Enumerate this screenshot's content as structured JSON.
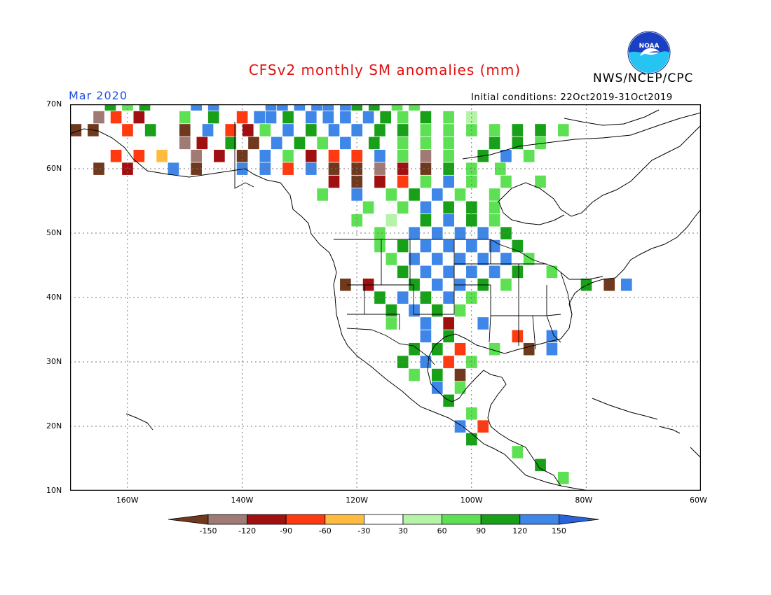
{
  "header": {
    "title": "CFSv2 monthly SM anomalies (mm)",
    "org": "NWS/NCEP/CPC",
    "period": "Mar 2020",
    "initial_conditions": "Initial conditions: 22Oct2019-31Oct2019",
    "logo_text": "NOAA"
  },
  "axes": {
    "lat_labels": [
      "70N",
      "60N",
      "50N",
      "40N",
      "30N",
      "20N",
      "10N"
    ],
    "lon_labels": [
      "160W",
      "140W",
      "120W",
      "100W",
      "80W",
      "60W"
    ],
    "lat_range": [
      10,
      70
    ],
    "lon_range": [
      -170,
      -60
    ]
  },
  "legend": {
    "ticks": [
      "-150",
      "-120",
      "-90",
      "-60",
      "-30",
      "30",
      "60",
      "90",
      "120",
      "150"
    ],
    "colors": [
      "#70391e",
      "#a07a74",
      "#a01010",
      "#ff3a10",
      "#ffbb40",
      "#ffffff",
      "#b4f3a8",
      "#5ee054",
      "#18a018",
      "#3e86e8",
      "#2a62d8"
    ]
  },
  "map_data": {
    "cell_deg": 1.875,
    "anomaly_cells": [
      [
        "70,-148",
        150
      ],
      [
        "70,-145",
        150
      ],
      [
        "70,-135",
        150
      ],
      [
        "70,-133",
        150
      ],
      [
        "70,-130",
        120
      ],
      [
        "70,-127",
        150
      ],
      [
        "70,-125",
        150
      ],
      [
        "70,-122",
        150
      ],
      [
        "70,-120",
        90
      ],
      [
        "70,-117",
        90
      ],
      [
        "70,-113",
        60
      ],
      [
        "70,-110",
        60
      ],
      [
        "70,-163",
        90
      ],
      [
        "70,-160",
        60
      ],
      [
        "70,-157",
        90
      ],
      [
        "68,-165",
        -120
      ],
      [
        "68,-162",
        -60
      ],
      [
        "68,-158",
        -90
      ],
      [
        "68,-150",
        60
      ],
      [
        "68,-145",
        90
      ],
      [
        "68,-140",
        -60
      ],
      [
        "68,-137",
        120
      ],
      [
        "68,-135",
        150
      ],
      [
        "68,-132",
        90
      ],
      [
        "68,-128",
        150
      ],
      [
        "68,-125",
        150
      ],
      [
        "68,-122",
        150
      ],
      [
        "68,-118",
        120
      ],
      [
        "68,-115",
        90
      ],
      [
        "68,-112",
        60
      ],
      [
        "68,-108",
        90
      ],
      [
        "68,-104",
        60
      ],
      [
        "68,-100",
        30
      ],
      [
        "66,-169",
        -150
      ],
      [
        "66,-166",
        -150
      ],
      [
        "66,-160",
        -60
      ],
      [
        "66,-156",
        90
      ],
      [
        "66,-150",
        -150
      ],
      [
        "66,-146",
        120
      ],
      [
        "66,-142",
        -60
      ],
      [
        "66,-139",
        -90
      ],
      [
        "66,-136",
        60
      ],
      [
        "66,-132",
        120
      ],
      [
        "66,-128",
        90
      ],
      [
        "66,-124",
        150
      ],
      [
        "66,-120",
        120
      ],
      [
        "66,-116",
        90
      ],
      [
        "66,-112",
        90
      ],
      [
        "66,-108",
        60
      ],
      [
        "66,-104",
        60
      ],
      [
        "66,-100",
        60
      ],
      [
        "66,-96",
        60
      ],
      [
        "66,-92",
        90
      ],
      [
        "66,-88",
        90
      ],
      [
        "66,-84",
        60
      ],
      [
        "64,-150",
        -120
      ],
      [
        "64,-147",
        -90
      ],
      [
        "64,-142",
        90
      ],
      [
        "64,-138",
        -150
      ],
      [
        "64,-134",
        120
      ],
      [
        "64,-130",
        90
      ],
      [
        "64,-126",
        60
      ],
      [
        "64,-122",
        120
      ],
      [
        "64,-117",
        90
      ],
      [
        "64,-112",
        60
      ],
      [
        "64,-108",
        60
      ],
      [
        "64,-104",
        60
      ],
      [
        "64,-96",
        90
      ],
      [
        "64,-92",
        90
      ],
      [
        "64,-88",
        60
      ],
      [
        "62,-162",
        -60
      ],
      [
        "62,-158",
        -60
      ],
      [
        "62,-154",
        -30
      ],
      [
        "62,-148",
        -120
      ],
      [
        "62,-144",
        -90
      ],
      [
        "62,-140",
        -150
      ],
      [
        "62,-136",
        120
      ],
      [
        "62,-132",
        60
      ],
      [
        "62,-128",
        -90
      ],
      [
        "62,-124",
        -60
      ],
      [
        "62,-120",
        -60
      ],
      [
        "62,-116",
        120
      ],
      [
        "62,-112",
        60
      ],
      [
        "62,-108",
        -120
      ],
      [
        "62,-104",
        60
      ],
      [
        "62,-98",
        90
      ],
      [
        "62,-94",
        120
      ],
      [
        "62,-90",
        60
      ],
      [
        "60,-165",
        -150
      ],
      [
        "60,-160",
        -90
      ],
      [
        "60,-152",
        150
      ],
      [
        "60,-148",
        -150
      ],
      [
        "60,-140",
        150
      ],
      [
        "60,-136",
        120
      ],
      [
        "60,-132",
        -60
      ],
      [
        "60,-128",
        150
      ],
      [
        "60,-124",
        -150
      ],
      [
        "60,-120",
        -150
      ],
      [
        "60,-116",
        -120
      ],
      [
        "60,-112",
        -90
      ],
      [
        "60,-108",
        -150
      ],
      [
        "60,-104",
        90
      ],
      [
        "60,-100",
        60
      ],
      [
        "60,-95",
        60
      ],
      [
        "58,-124",
        -90
      ],
      [
        "58,-120",
        -150
      ],
      [
        "58,-116",
        -90
      ],
      [
        "58,-112",
        -60
      ],
      [
        "58,-108",
        60
      ],
      [
        "58,-104",
        150
      ],
      [
        "58,-100",
        60
      ],
      [
        "58,-94",
        60
      ],
      [
        "58,-88",
        60
      ],
      [
        "56,-126",
        60
      ],
      [
        "56,-120",
        150
      ],
      [
        "56,-114",
        60
      ],
      [
        "56,-110",
        90
      ],
      [
        "56,-106",
        120
      ],
      [
        "56,-102",
        60
      ],
      [
        "56,-96",
        60
      ],
      [
        "54,-118",
        60
      ],
      [
        "54,-112",
        60
      ],
      [
        "54,-108",
        120
      ],
      [
        "54,-104",
        90
      ],
      [
        "54,-100",
        90
      ],
      [
        "54,-96",
        60
      ],
      [
        "52,-120",
        60
      ],
      [
        "52,-114",
        30
      ],
      [
        "52,-108",
        90
      ],
      [
        "52,-104",
        120
      ],
      [
        "52,-100",
        90
      ],
      [
        "52,-96",
        60
      ],
      [
        "50,-116",
        60
      ],
      [
        "50,-110",
        120
      ],
      [
        "50,-106",
        150
      ],
      [
        "50,-102",
        150
      ],
      [
        "50,-98",
        120
      ],
      [
        "50,-94",
        90
      ],
      [
        "48,-116",
        60
      ],
      [
        "48,-112",
        90
      ],
      [
        "48,-108",
        150
      ],
      [
        "48,-104",
        150
      ],
      [
        "48,-100",
        150
      ],
      [
        "48,-96",
        150
      ],
      [
        "48,-92",
        90
      ],
      [
        "46,-114",
        60
      ],
      [
        "46,-110",
        150
      ],
      [
        "46,-106",
        150
      ],
      [
        "46,-102",
        150
      ],
      [
        "46,-98",
        150
      ],
      [
        "46,-94",
        120
      ],
      [
        "46,-90",
        60
      ],
      [
        "44,-112",
        90
      ],
      [
        "44,-108",
        150
      ],
      [
        "44,-104",
        150
      ],
      [
        "44,-100",
        150
      ],
      [
        "44,-96",
        120
      ],
      [
        "44,-92",
        90
      ],
      [
        "44,-86",
        60
      ],
      [
        "42,-122",
        -150
      ],
      [
        "42,-118",
        -90
      ],
      [
        "42,-110",
        90
      ],
      [
        "42,-106",
        120
      ],
      [
        "42,-102",
        150
      ],
      [
        "42,-98",
        90
      ],
      [
        "42,-94",
        60
      ],
      [
        "42,-80",
        90
      ],
      [
        "42,-76",
        -150
      ],
      [
        "42,-73",
        150
      ],
      [
        "40,-116",
        90
      ],
      [
        "40,-112",
        120
      ],
      [
        "40,-108",
        90
      ],
      [
        "40,-104",
        120
      ],
      [
        "40,-100",
        60
      ],
      [
        "38,-114",
        90
      ],
      [
        "38,-110",
        120
      ],
      [
        "38,-106",
        90
      ],
      [
        "38,-102",
        60
      ],
      [
        "36,-114",
        60
      ],
      [
        "36,-108",
        120
      ],
      [
        "36,-104",
        -90
      ],
      [
        "36,-98",
        150
      ],
      [
        "34,-108",
        120
      ],
      [
        "34,-104",
        90
      ],
      [
        "34,-92",
        -60
      ],
      [
        "34,-86",
        120
      ],
      [
        "32,-110",
        90
      ],
      [
        "32,-106",
        90
      ],
      [
        "32,-102",
        -60
      ],
      [
        "32,-96",
        60
      ],
      [
        "32,-90",
        -150
      ],
      [
        "32,-86",
        150
      ],
      [
        "30,-112",
        90
      ],
      [
        "30,-108",
        120
      ],
      [
        "30,-104",
        -60
      ],
      [
        "30,-100",
        60
      ],
      [
        "28,-110",
        60
      ],
      [
        "28,-106",
        90
      ],
      [
        "28,-102",
        -150
      ],
      [
        "26,-106",
        120
      ],
      [
        "26,-102",
        60
      ],
      [
        "24,-104",
        90
      ],
      [
        "22,-100",
        60
      ],
      [
        "20,-102",
        150
      ],
      [
        "20,-98",
        -60
      ],
      [
        "18,-100",
        90
      ],
      [
        "16,-92",
        60
      ],
      [
        "14,-88",
        90
      ],
      [
        "12,-84",
        60
      ]
    ]
  }
}
